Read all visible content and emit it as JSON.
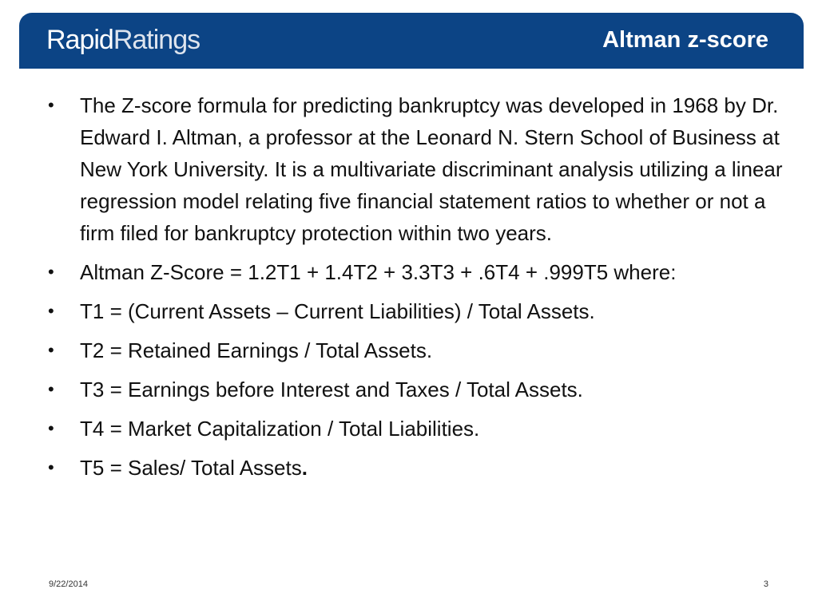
{
  "header": {
    "logo_part1": "Rapid",
    "logo_part2": "Ratings",
    "title": "Altman z-score",
    "background_color": "#0c4485"
  },
  "bullets": [
    {
      "text": "The Z-score formula for predicting bankruptcy was developed in 1968 by Dr. Edward I. Altman, a professor at the Leonard N. Stern School of Business at New York University. It is a multivariate discriminant analysis utilizing a linear regression model relating five financial statement ratios to whether or not a firm filed for bankruptcy protection within two years."
    },
    {
      "text": "Altman Z-Score = 1.2T1 + 1.4T2 + 3.3T3 + .6T4 + .999T5 where:"
    },
    {
      "text": "T1 = (Current Assets – Current Liabilities) / Total Assets."
    },
    {
      "text": "T2 = Retained Earnings / Total Assets."
    },
    {
      "text": "T3 = Earnings before Interest and Taxes / Total Assets."
    },
    {
      "text": "T4 = Market Capitalization / Total Liabilities."
    },
    {
      "text": "T5 = Sales/ Total Assets",
      "suffix": "."
    }
  ],
  "bullet_symbol": "•",
  "footer": {
    "date": "9/22/2014",
    "page_number": "3"
  }
}
